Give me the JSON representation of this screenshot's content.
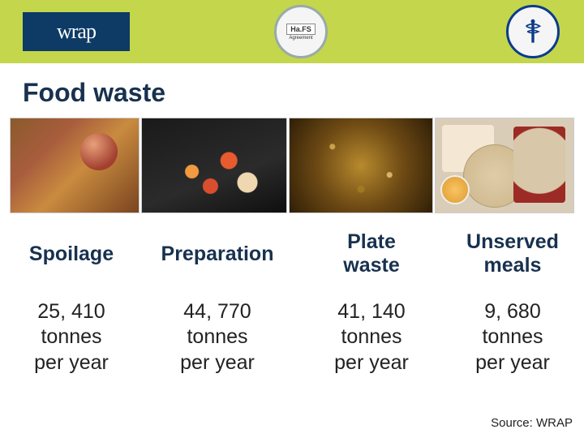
{
  "header": {
    "wrap_logo_text": "wrap",
    "hafs_badge_label": "Ha.FS",
    "hafs_badge_sub": "Agreement"
  },
  "title": "Food waste",
  "categories": [
    {
      "label": "Spoilage",
      "value": "25, 410",
      "unit": "tonnes",
      "period": "per year"
    },
    {
      "label": "Preparation",
      "value": "44, 770",
      "unit": "tonnes",
      "period": "per year"
    },
    {
      "label": "Plate\nwaste",
      "value": "41, 140",
      "unit": "tonnes",
      "period": "per year"
    },
    {
      "label": "Unserved\nmeals",
      "value": "9, 680",
      "unit": "tonnes",
      "period": "per year"
    }
  ],
  "source": "Source: WRAP",
  "colors": {
    "header_band": "#c4d64c",
    "wrap_logo_bg": "#0d3b66",
    "title_color": "#18314f",
    "body_text": "#222222"
  }
}
